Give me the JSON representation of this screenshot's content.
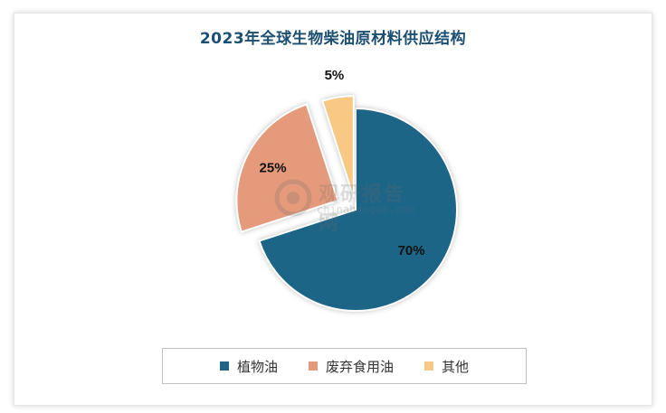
{
  "chart_data": {
    "type": "pie",
    "title": "2023年全球生物柴油原材料供应结构",
    "categories": [
      "植物油",
      "废弃食用油",
      "其他"
    ],
    "values": [
      70,
      25,
      5
    ],
    "value_labels": [
      "70%",
      "25%",
      "5%"
    ],
    "legend_position": "bottom",
    "colors": [
      "#1d6587",
      "#e59b7b",
      "#f8c884"
    ]
  },
  "watermark": {
    "name": "观研报告网",
    "url": "chinabaogao.com"
  }
}
